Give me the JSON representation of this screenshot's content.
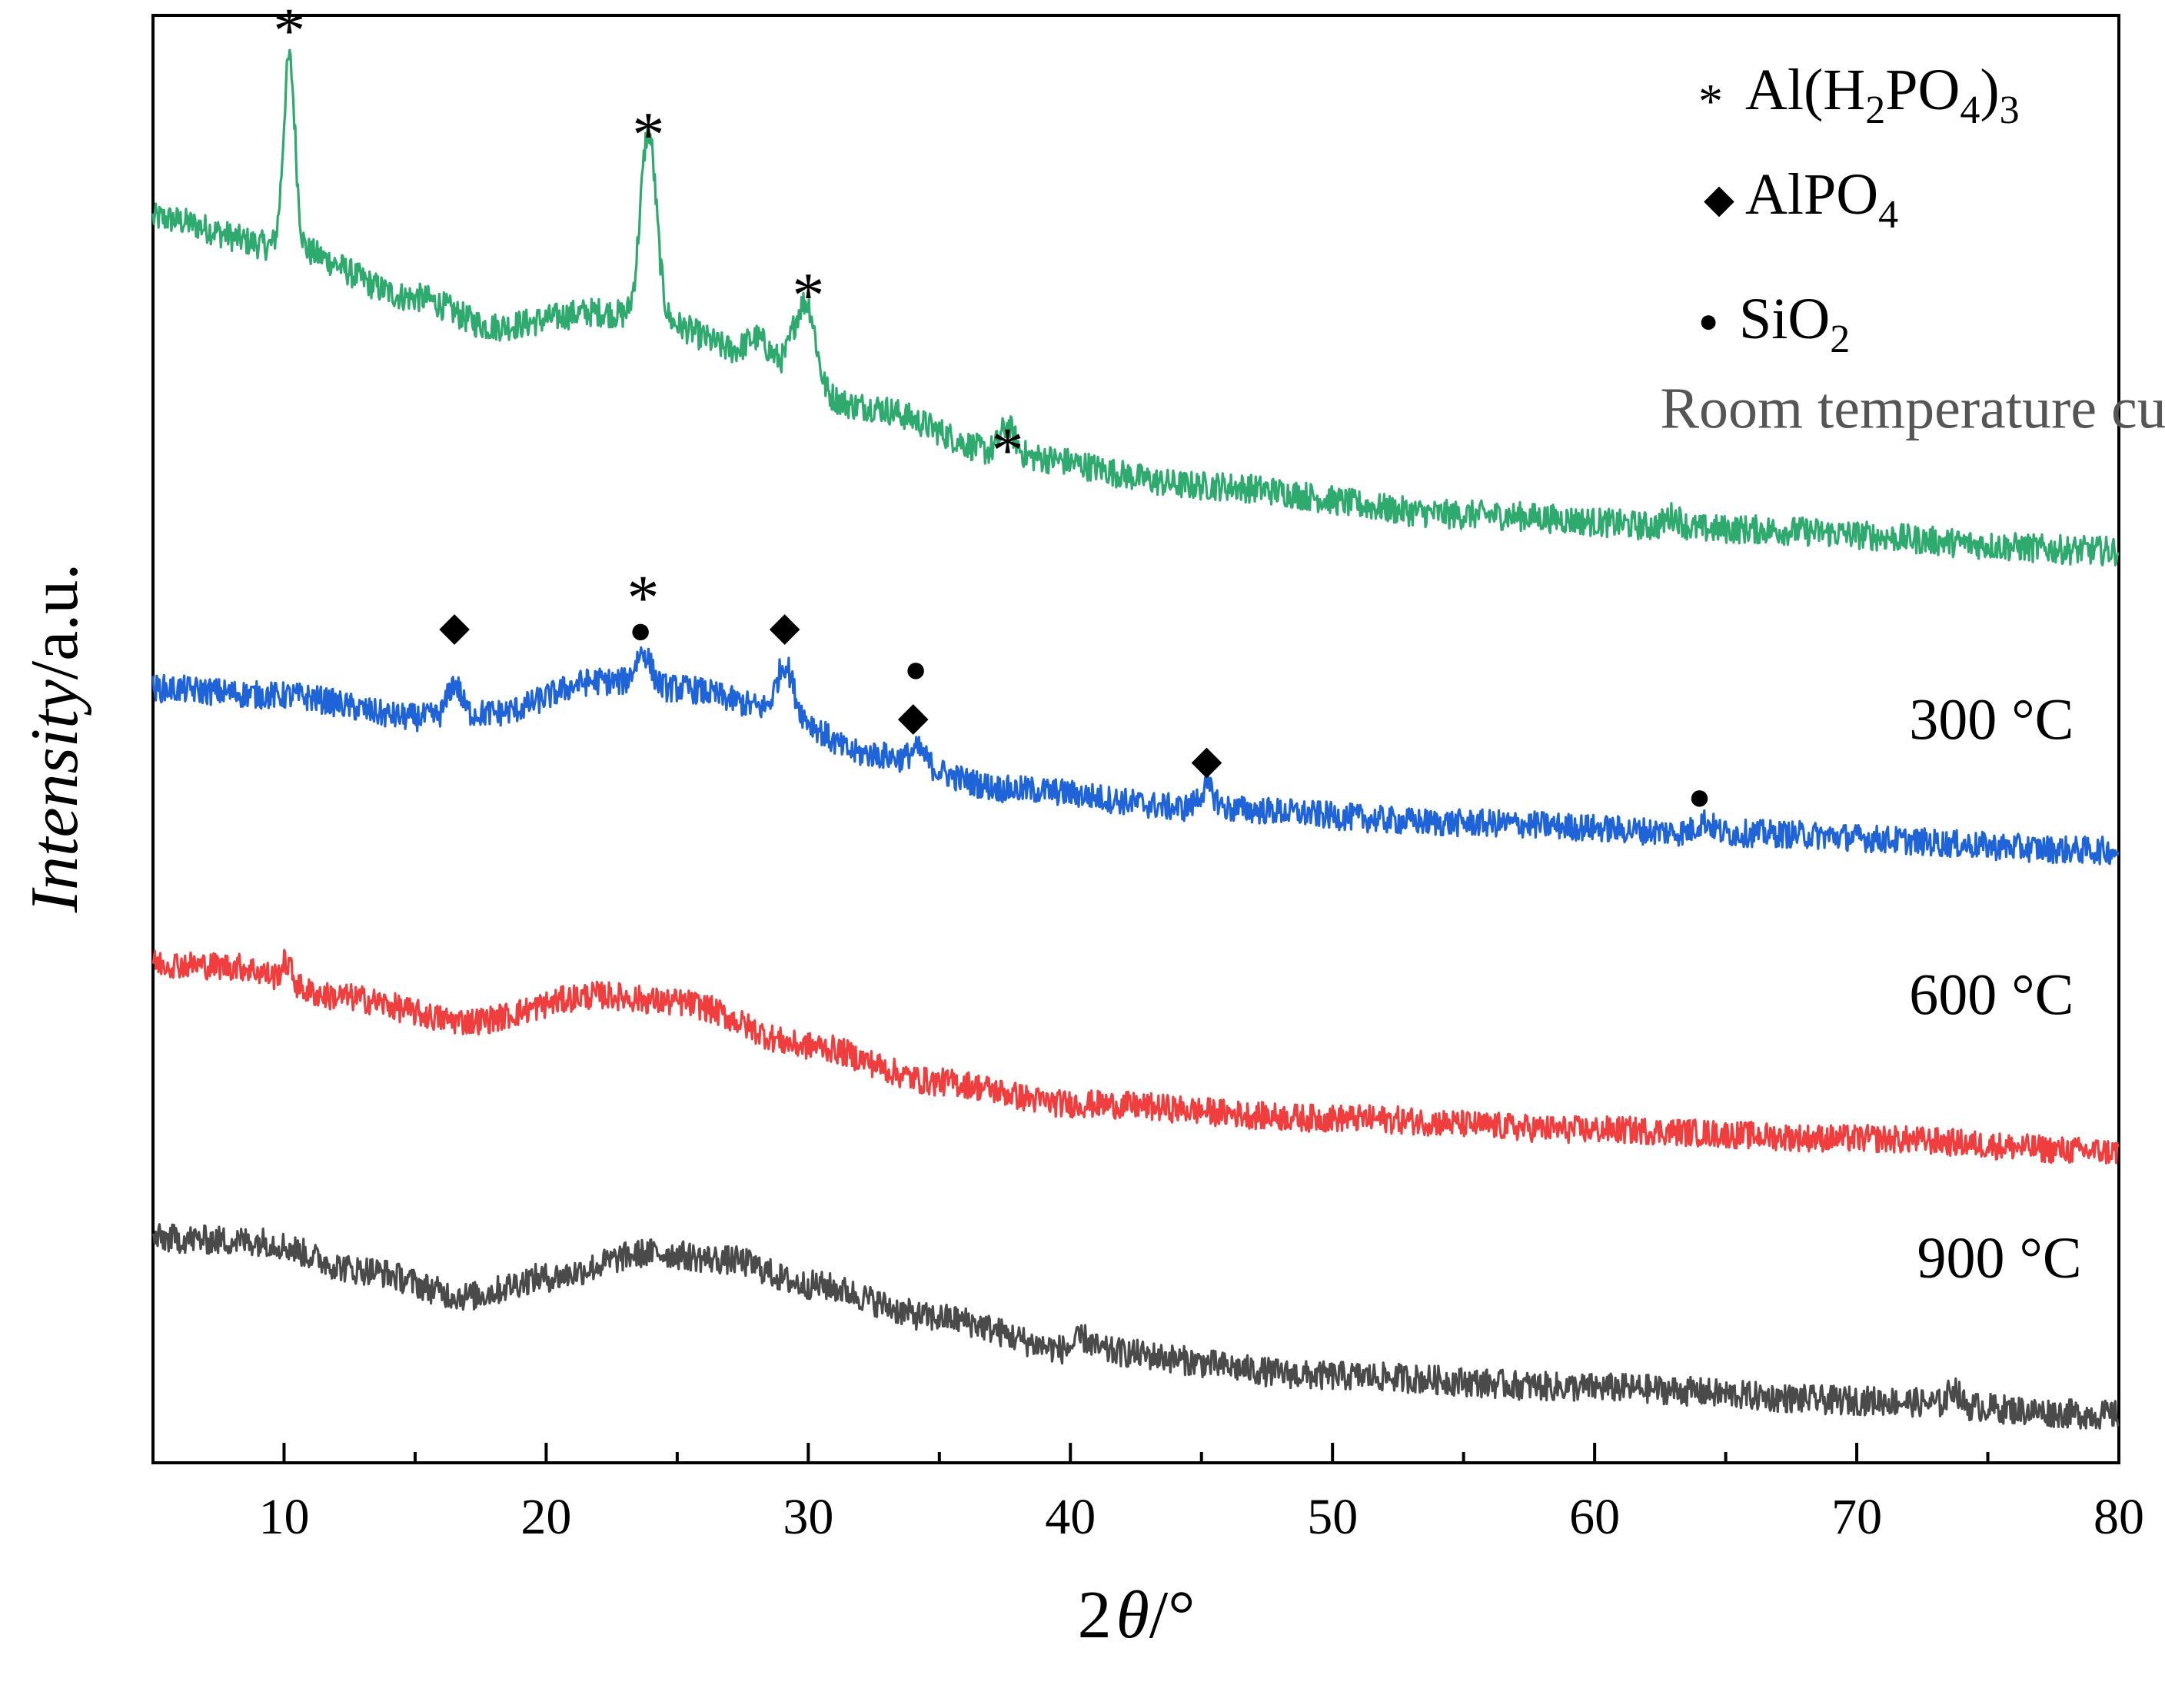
{
  "chart_data": {
    "type": "line",
    "title": "",
    "xlabel_prefix": "2",
    "xlabel_symbol": "θ",
    "xlabel_unit": "/°",
    "ylabel_italic": "Intensity",
    "ylabel_unit": "/a.u.",
    "xlim": [
      5,
      80
    ],
    "ylim": [
      0,
      100
    ],
    "y_ticks_shown": false,
    "grid": false,
    "x_ticks": [
      10,
      20,
      30,
      40,
      50,
      60,
      70,
      80
    ],
    "x_tick_labels": [
      "10",
      "20",
      "30",
      "40",
      "50",
      "60",
      "70",
      "80"
    ],
    "legend": {
      "placement": "top-right",
      "entries": [
        {
          "marker": "asterisk",
          "symbol": "*",
          "text_parts": [
            "Al(H",
            "2",
            "PO",
            "4",
            ")",
            "3"
          ]
        },
        {
          "marker": "diamond",
          "symbol": "◆",
          "text_parts": [
            "AlPO",
            "4"
          ]
        },
        {
          "marker": "circle",
          "symbol": "●",
          "text_parts": [
            "SiO",
            "2"
          ]
        }
      ]
    },
    "series": [
      {
        "name": "Room temperature curve",
        "color": "#2eaa6e",
        "label_color": "#555555",
        "baseline": [
          [
            5,
            86
          ],
          [
            10,
            84
          ],
          [
            15,
            80.5
          ],
          [
            18,
            78.5
          ],
          [
            22,
            79.5
          ],
          [
            24,
            79
          ],
          [
            28,
            76.5
          ],
          [
            32,
            73
          ],
          [
            38,
            69.5
          ],
          [
            45,
            67.5
          ],
          [
            55,
            65.5
          ],
          [
            65,
            64.5
          ],
          [
            80,
            63
          ]
        ],
        "peaks": [
          [
            10.2,
            13,
            0.22
          ],
          [
            23.9,
            13,
            0.3
          ],
          [
            30.0,
            5,
            0.3
          ],
          [
            29.5,
            2.2,
            0.25
          ],
          [
            28.0,
            1.2,
            0.4
          ],
          [
            37.6,
            2.0,
            0.3
          ],
          [
            63.0,
            0.8,
            0.3
          ]
        ],
        "noise": 1.0
      },
      {
        "name": "300 °C",
        "color": "#1f63d8",
        "label_color": "#000000",
        "baseline": [
          [
            5,
            53.5
          ],
          [
            10,
            53
          ],
          [
            15,
            51.5
          ],
          [
            18,
            51.8
          ],
          [
            22,
            54
          ],
          [
            25,
            53.5
          ],
          [
            29,
            52
          ],
          [
            32,
            49
          ],
          [
            38,
            46.5
          ],
          [
            45,
            45.2
          ],
          [
            55,
            44.2
          ],
          [
            65,
            43.5
          ],
          [
            80,
            42.3
          ]
        ],
        "peaks": [
          [
            16.5,
            2.2,
            0.25
          ],
          [
            23.7,
            2.3,
            0.3
          ],
          [
            29.1,
            3.2,
            0.3
          ],
          [
            34.2,
            1.0,
            0.3
          ],
          [
            45.2,
            1.4,
            0.3
          ],
          [
            64.2,
            0.8,
            0.3
          ]
        ],
        "noise": 0.95
      },
      {
        "name": "600 °C",
        "color": "#f03e3e",
        "label_color": "#000000",
        "baseline": [
          [
            5,
            34.5
          ],
          [
            8,
            34.3
          ],
          [
            12,
            32.2
          ],
          [
            17,
            30.5
          ],
          [
            22,
            32.3
          ],
          [
            25,
            31.8
          ],
          [
            30,
            28.8
          ],
          [
            35,
            26.3
          ],
          [
            40,
            24.8
          ],
          [
            50,
            23.8
          ],
          [
            60,
            23.0
          ],
          [
            70,
            22.4
          ],
          [
            80,
            21.5
          ]
        ],
        "peaks": [
          [
            10.1,
            1.4,
            0.2
          ]
        ],
        "noise": 0.95
      },
      {
        "name": "900 °C",
        "color": "#4a4a4a",
        "label_color": "#000000",
        "baseline": [
          [
            5,
            15.5
          ],
          [
            9,
            15.3
          ],
          [
            13,
            13.3
          ],
          [
            17,
            11.5
          ],
          [
            20,
            12.8
          ],
          [
            24,
            14.5
          ],
          [
            27,
            14.0
          ],
          [
            30,
            12.3
          ],
          [
            35,
            10.0
          ],
          [
            40,
            7.8
          ],
          [
            50,
            6.0
          ],
          [
            60,
            5.2
          ],
          [
            70,
            4.3
          ],
          [
            80,
            3.3
          ]
        ],
        "peaks": [
          [
            40.5,
            0.8,
            0.3
          ],
          [
            73.7,
            1.2,
            0.2
          ]
        ],
        "noise": 1.0
      }
    ],
    "series_labels": [
      {
        "text": "Room temperature curve",
        "x": 62.5,
        "y": 71.5,
        "color": "#555555"
      },
      {
        "text": "300 °C",
        "x": 72,
        "y": 50,
        "color": "#000000"
      },
      {
        "text": "600 °C",
        "x": 72,
        "y": 31,
        "color": "#000000"
      },
      {
        "text": "900 °C",
        "x": 72.3,
        "y": 12.8,
        "color": "#000000"
      }
    ],
    "annotations": [
      {
        "symbol": "*",
        "x": 10.2,
        "y": 99.5
      },
      {
        "symbol": "*",
        "x": 23.9,
        "y": 92.3
      },
      {
        "symbol": "*",
        "x": 30.0,
        "y": 81.2
      },
      {
        "symbol": "*",
        "x": 37.6,
        "y": 70.5
      },
      {
        "symbol": "*",
        "x": 23.7,
        "y": 60.3
      },
      {
        "symbol": "●",
        "x": 23.6,
        "y": 57.5
      },
      {
        "symbol": "◆",
        "x": 16.5,
        "y": 57.8
      },
      {
        "symbol": "◆",
        "x": 29.1,
        "y": 57.8
      },
      {
        "symbol": "●",
        "x": 34.1,
        "y": 54.8
      },
      {
        "symbol": "◆",
        "x": 34.0,
        "y": 51.6
      },
      {
        "symbol": "◆",
        "x": 45.2,
        "y": 48.6
      },
      {
        "symbol": "●",
        "x": 64.0,
        "y": 46.0
      }
    ]
  }
}
